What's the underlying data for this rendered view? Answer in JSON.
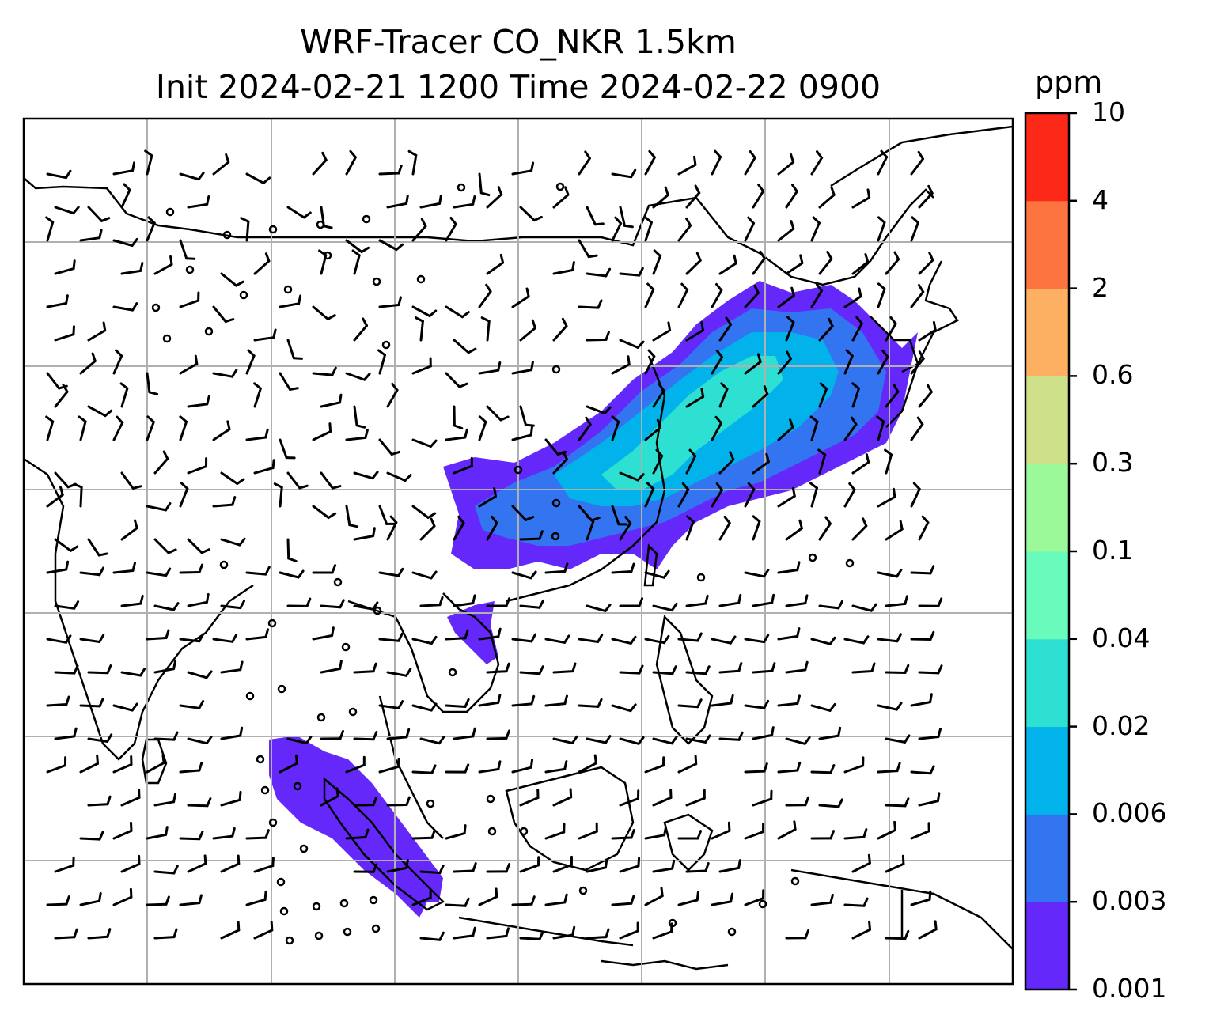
{
  "title_line1": "WRF-Tracer CO_NKR 1.5km",
  "title_line2": "Init 2024-02-21 1200 Time 2024-02-22 0900",
  "colorbar": {
    "unit": "ppm",
    "levels": [
      "0.001",
      "0.003",
      "0.006",
      "0.02",
      "0.04",
      "0.1",
      "0.3",
      "0.6",
      "2",
      "4",
      "10"
    ],
    "colors": [
      "#6428fa",
      "#3374f0",
      "#02b2eb",
      "#2ee0d1",
      "#68fbbb",
      "#9bf99a",
      "#cfe08a",
      "#fdaf62",
      "#fd7440",
      "#fc2818"
    ]
  },
  "map": {
    "field": "CO tracer concentration (shaded)",
    "overlay": "wind barbs",
    "background": "#ffffff",
    "gridline_color": "#b0b0b0",
    "coastline_color": "#000000"
  }
}
